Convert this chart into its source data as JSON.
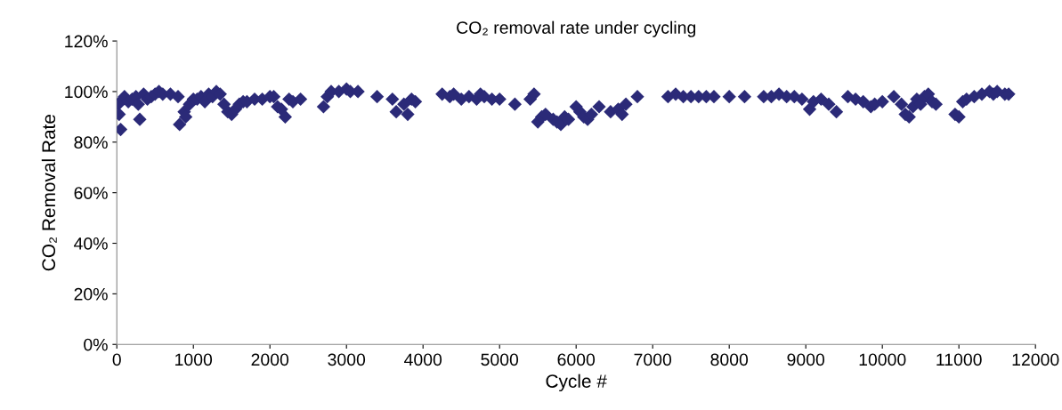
{
  "chart_data": {
    "type": "scatter",
    "title": "CO₂ removal rate under cycling",
    "xlabel": "Cycle #",
    "ylabel": "CO₂ Removal Rate",
    "marker": "diamond",
    "grid": false,
    "legend": false,
    "xlim": [
      0,
      12000
    ],
    "xticks": [
      0,
      1000,
      2000,
      3000,
      4000,
      5000,
      6000,
      7000,
      8000,
      9000,
      10000,
      11000,
      12000
    ],
    "ylim": [
      0,
      120
    ],
    "yticks": [
      {
        "value": 0,
        "label": "0%"
      },
      {
        "value": 20,
        "label": "20%"
      },
      {
        "value": 40,
        "label": "40%"
      },
      {
        "value": 60,
        "label": "60%"
      },
      {
        "value": 80,
        "label": "80%"
      },
      {
        "value": 100,
        "label": "100%"
      },
      {
        "value": 120,
        "label": "120%"
      }
    ],
    "series": [
      {
        "color": "#2b2a78",
        "x": [
          20,
          30,
          50,
          80,
          100,
          150,
          200,
          250,
          280,
          300,
          350,
          400,
          450,
          500,
          550,
          600,
          700,
          800,
          820,
          880,
          900,
          950,
          1000,
          1050,
          1100,
          1150,
          1200,
          1250,
          1300,
          1350,
          1400,
          1450,
          1500,
          1550,
          1600,
          1650,
          1700,
          1800,
          1900,
          2000,
          2050,
          2100,
          2150,
          2200,
          2250,
          2300,
          2400,
          2700,
          2750,
          2800,
          2900,
          3000,
          3050,
          3150,
          3400,
          3600,
          3650,
          3750,
          3800,
          3850,
          3900,
          4250,
          4350,
          4400,
          4500,
          4600,
          4700,
          4750,
          4800,
          4900,
          5000,
          5200,
          5400,
          5450,
          5500,
          5550,
          5600,
          5700,
          5750,
          5800,
          5850,
          5900,
          6000,
          6050,
          6100,
          6150,
          6200,
          6300,
          6450,
          6550,
          6600,
          6650,
          6800,
          7200,
          7300,
          7400,
          7500,
          7600,
          7700,
          7800,
          8000,
          8200,
          8450,
          8550,
          8650,
          8750,
          8850,
          8950,
          9050,
          9100,
          9200,
          9300,
          9400,
          9550,
          9650,
          9750,
          9850,
          9900,
          10000,
          10150,
          10250,
          10300,
          10350,
          10400,
          10450,
          10500,
          10550,
          10600,
          10650,
          10700,
          10950,
          11000,
          11050,
          11100,
          11200,
          11300,
          11400,
          11450,
          11500,
          11600,
          11650
        ],
        "values": [
          95,
          91,
          85,
          97,
          98,
          96,
          97,
          98,
          95,
          89,
          99,
          97,
          98,
          99,
          100,
          99,
          99,
          98,
          87,
          92,
          90,
          95,
          97,
          97,
          98,
          96,
          99,
          98,
          100,
          99,
          95,
          92,
          91,
          93,
          95,
          96,
          96,
          97,
          97,
          98,
          98,
          94,
          93,
          90,
          97,
          96,
          97,
          94,
          98,
          100,
          100,
          101,
          100,
          100,
          98,
          97,
          92,
          95,
          91,
          97,
          96,
          99,
          98,
          99,
          97,
          98,
          97,
          99,
          98,
          97,
          97,
          95,
          97,
          99,
          88,
          90,
          91,
          89,
          88,
          87,
          90,
          89,
          94,
          92,
          90,
          89,
          91,
          94,
          92,
          93,
          91,
          95,
          98,
          98,
          99,
          98,
          98,
          98,
          98,
          98,
          98,
          98,
          98,
          98,
          99,
          98,
          98,
          97,
          93,
          96,
          97,
          95,
          92,
          98,
          97,
          96,
          94,
          95,
          96,
          98,
          95,
          91,
          90,
          94,
          97,
          95,
          98,
          99,
          96,
          95,
          91,
          90,
          96,
          97,
          98,
          99,
          100,
          99,
          100,
          99,
          99
        ]
      }
    ]
  }
}
